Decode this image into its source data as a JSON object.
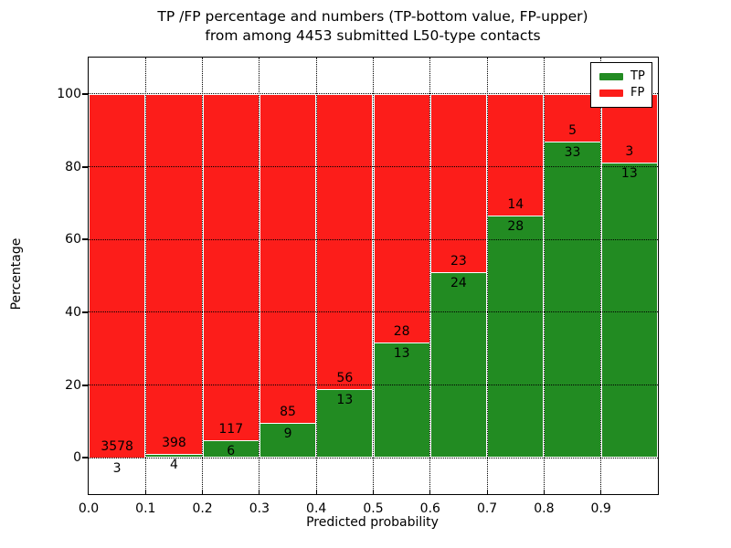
{
  "title": {
    "line1": "TP /FP percentage and numbers (TP-bottom value, FP-upper)",
    "line2": "from among 4453 submitted L50-type contacts"
  },
  "axes": {
    "xlabel": "Predicted probability",
    "ylabel": "Percentage",
    "x_tick_labels": [
      "0.0",
      "0.1",
      "0.2",
      "0.3",
      "0.4",
      "0.5",
      "0.6",
      "0.7",
      "0.8",
      "0.9"
    ],
    "y_tick_labels": [
      "0",
      "20",
      "40",
      "60",
      "80",
      "100"
    ],
    "y_tick_values": [
      0,
      20,
      40,
      60,
      80,
      100
    ],
    "xlim": [
      0.0,
      1.0
    ],
    "ylim": [
      -10,
      110
    ],
    "grid_style": "dotted",
    "grid_on": true
  },
  "legend": {
    "position": "upper-right",
    "items": [
      {
        "label": "TP",
        "color": "#228b22"
      },
      {
        "label": "FP",
        "color": "#fc1d1a"
      }
    ]
  },
  "chart_data": {
    "type": "bar",
    "stacked": true,
    "normalized_to_percent": true,
    "title": "TP /FP percentage and numbers (TP-bottom value, FP-upper) from among 4453 submitted L50-type contacts",
    "xlabel": "Predicted probability",
    "ylabel": "Percentage",
    "bin_edges": [
      0.0,
      0.1,
      0.2,
      0.3,
      0.4,
      0.5,
      0.6,
      0.7,
      0.8,
      0.9,
      1.0
    ],
    "series": [
      {
        "name": "TP",
        "color": "#228b22",
        "counts": [
          3,
          4,
          6,
          9,
          13,
          13,
          24,
          28,
          33,
          13
        ]
      },
      {
        "name": "FP",
        "color": "#fc1d1a",
        "counts": [
          3578,
          398,
          117,
          85,
          56,
          28,
          23,
          14,
          5,
          3
        ]
      }
    ],
    "tp_percent_per_bin": [
      0.08,
      1.0,
      4.88,
      9.57,
      18.84,
      31.71,
      51.06,
      66.67,
      86.84,
      81.25
    ],
    "total_contacts": 4453,
    "bar_edge_color": "#ffffff"
  },
  "colors": {
    "background": "#ffffff",
    "frame": "#000000",
    "text": "#000000"
  }
}
